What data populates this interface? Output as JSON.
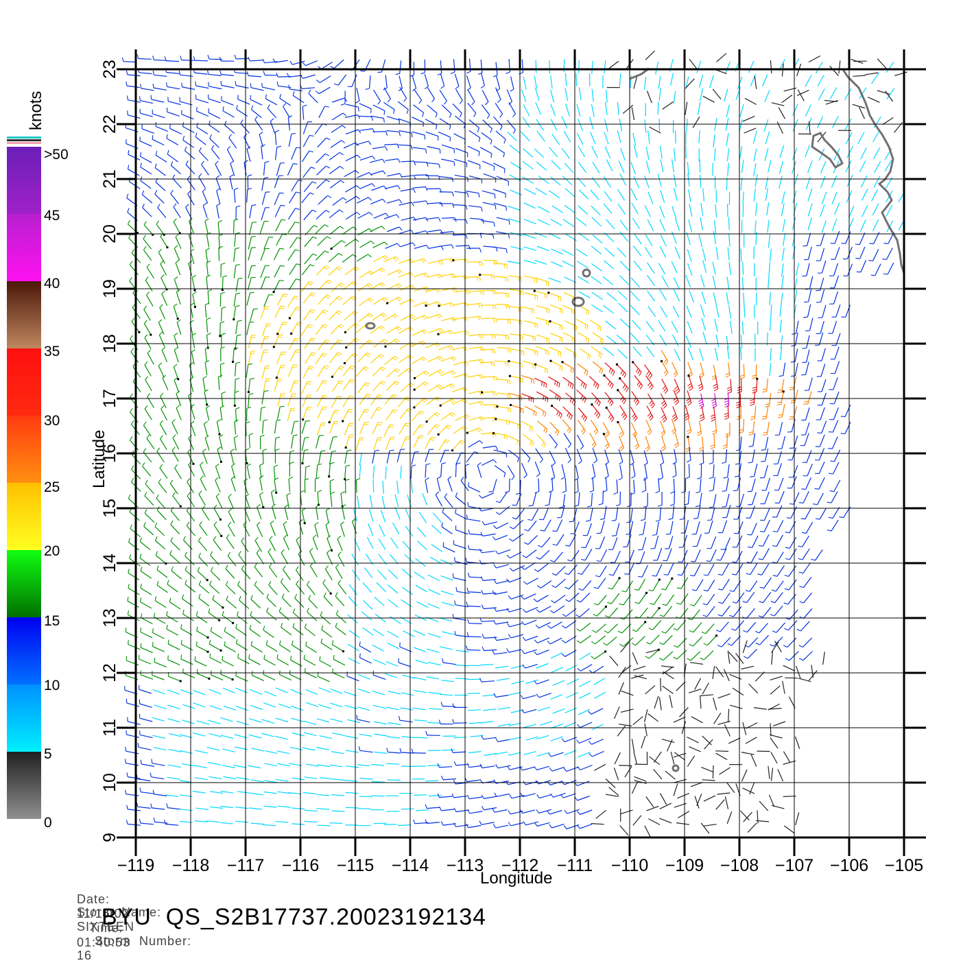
{
  "header": {
    "date_label": "Date:",
    "date": "11/15/02",
    "time_label": "Time:",
    "time": "01:40:53",
    "storm_name_label": "Storm  Name:",
    "storm_name": "SIXTEEN",
    "storm_number_label": "Storm  Number:",
    "storm_number": "16"
  },
  "title": "BYU  QS_S2B17737.20023192134",
  "axes": {
    "xlabel": "Longitude",
    "ylabel": "Latitude",
    "x_ticks": [
      "−119",
      "−118",
      "−117",
      "−116",
      "−115",
      "−114",
      "−113",
      "−112",
      "−111",
      "−110",
      "−109",
      "−108",
      "−107",
      "−106",
      "−105"
    ],
    "y_ticks": [
      "9",
      "10",
      "11",
      "12",
      "13",
      "14",
      "15",
      "16",
      "17",
      "18",
      "19",
      "20",
      "21",
      "22",
      "23"
    ]
  },
  "colorbar": {
    "unit": "knots",
    "labels": [
      ">50",
      "45",
      "40",
      "35",
      "30",
      "25",
      "20",
      "15",
      "10",
      "5",
      "0"
    ],
    "bands": [
      {
        "range": "45-50",
        "top": "#6a1fb8",
        "bottom": "#a020c8"
      },
      {
        "range": "40-45",
        "top": "#b81fd0",
        "bottom": "#ff10f0"
      },
      {
        "range": "35-40",
        "top": "#4a1608",
        "bottom": "#c08860"
      },
      {
        "range": "30-35",
        "top": "#ff1010",
        "bottom": "#ff2a10"
      },
      {
        "range": "25-30",
        "top": "#ff3a10",
        "bottom": "#ff9010"
      },
      {
        "range": "20-25",
        "top": "#ffc000",
        "bottom": "#ffff20"
      },
      {
        "range": "15-20",
        "top": "#10ff10",
        "bottom": "#007000"
      },
      {
        "range": "10-15",
        "top": "#0000f0",
        "bottom": "#0070ff"
      },
      {
        "range": "5-10",
        "top": "#0090ff",
        "bottom": "#00f0ff"
      },
      {
        "range": "0-5",
        "top": "#202020",
        "bottom": "#909090"
      }
    ]
  },
  "map_data": {
    "lon_range": [
      -119,
      -105
    ],
    "lat_range": [
      9,
      23
    ],
    "storm_center": {
      "lon": -112.6,
      "lat": 15.6
    },
    "coastline_color": "#707070",
    "speed_colors": {
      "0-5": "#202020",
      "5-10": "#00d8ff",
      "10-15": "#0030e0",
      "15-20": "#009000",
      "20-25": "#ffd000",
      "25-30": "#ff8000",
      "30-35": "#e01010",
      "35-40": "#a05030",
      "40-45": "#d010d0"
    }
  }
}
